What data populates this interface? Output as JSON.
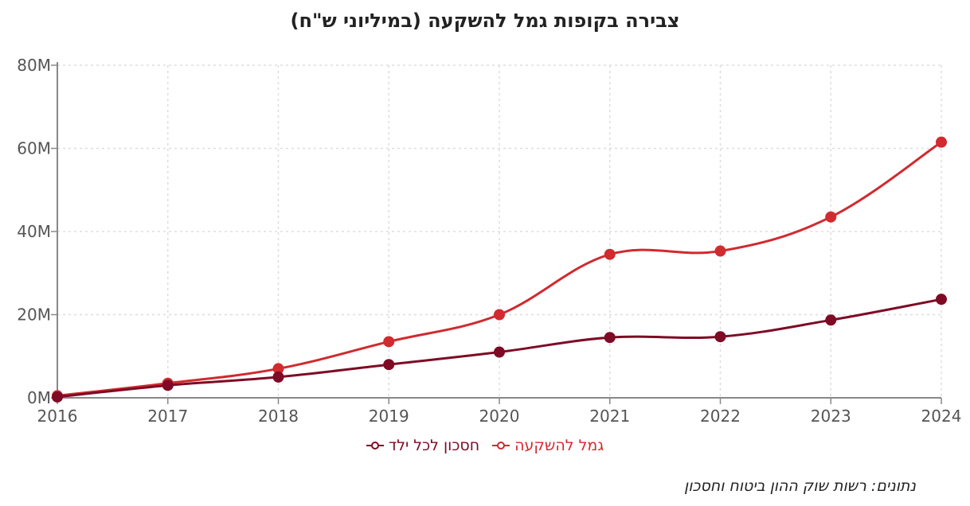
{
  "chart_data": {
    "type": "line",
    "title": "צבירה בקופות גמל להשקעה (במיליוני ש\"ח)",
    "x": [
      "2016",
      "2017",
      "2018",
      "2019",
      "2020",
      "2021",
      "2022",
      "2023",
      "2024"
    ],
    "y_ticks": [
      "0M",
      "20M",
      "40M",
      "60M",
      "80M"
    ],
    "ylim": [
      0,
      80
    ],
    "grid": true,
    "legend_position": "bottom-center",
    "series": [
      {
        "name": "גמל להשקעה",
        "color": "#d12a2f",
        "values": [
          0.5,
          3.5,
          7,
          13.5,
          20,
          34.5,
          35.3,
          43.5,
          61.5
        ]
      },
      {
        "name": "חסכון לכל ילד",
        "color": "#7e0a24",
        "values": [
          0.2,
          3,
          5,
          8,
          11,
          14.5,
          14.7,
          18.7,
          23.7
        ]
      }
    ],
    "source": "נתונים: רשות שוק ההון ביטוח וחסכון"
  }
}
